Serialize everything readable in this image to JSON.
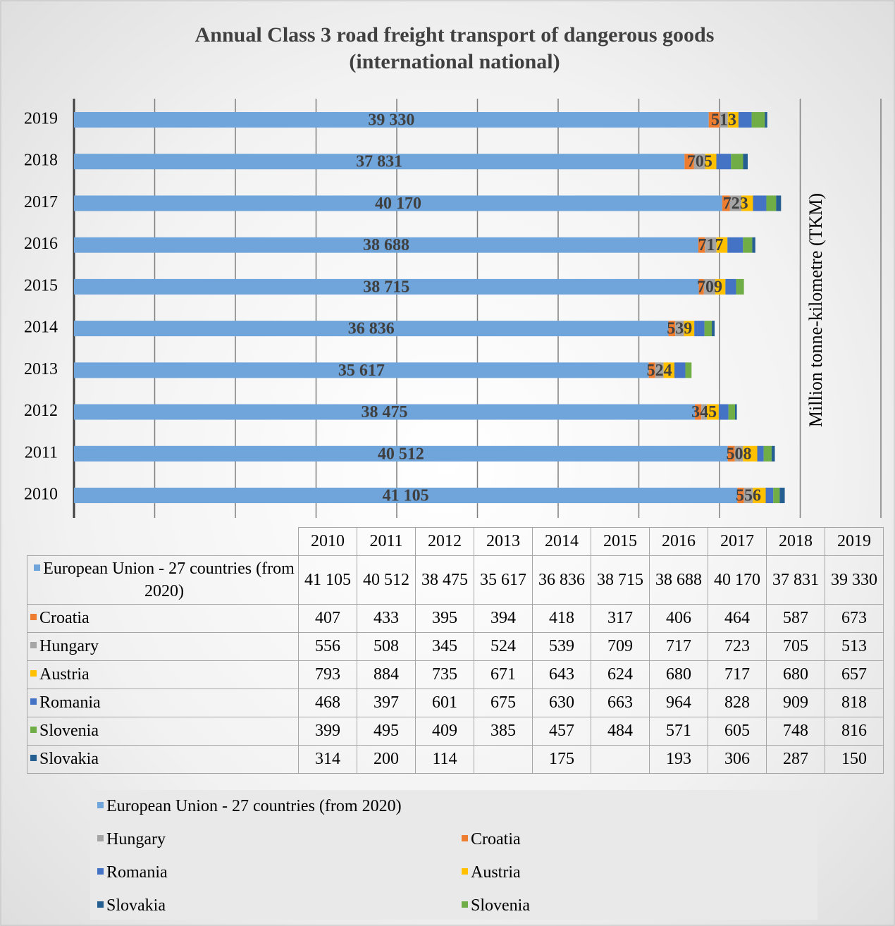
{
  "chart_data": {
    "type": "stacked_barh",
    "title": "Annual Class 3 road freight transport of dangerous goods",
    "subtitle": "(international national)",
    "axis_title": "Million tonne-kilometre (TKM)",
    "categories": [
      "2010",
      "2011",
      "2012",
      "2013",
      "2014",
      "2015",
      "2016",
      "2017",
      "2018",
      "2019"
    ],
    "series": [
      {
        "name": "European Union - 27 countries (from 2020)",
        "color": "#6fa5da",
        "data_labels": true,
        "values": [
          41105,
          40512,
          38475,
          35617,
          36836,
          38715,
          38688,
          40170,
          37831,
          39330
        ],
        "value_labels": [
          "41 105",
          "40 512",
          "38 475",
          "35 617",
          "36 836",
          "38 715",
          "38 688",
          "40 170",
          "37 831",
          "39 330"
        ]
      },
      {
        "name": "Croatia",
        "color": "#ed7d31",
        "values": [
          407,
          433,
          395,
          394,
          418,
          317,
          406,
          464,
          587,
          673
        ]
      },
      {
        "name": "Hungary",
        "color": "#a5a5a5",
        "data_labels": true,
        "values": [
          556,
          508,
          345,
          524,
          539,
          709,
          717,
          723,
          705,
          513
        ]
      },
      {
        "name": "Austria",
        "color": "#ffc000",
        "values": [
          793,
          884,
          735,
          671,
          643,
          624,
          680,
          717,
          680,
          657
        ]
      },
      {
        "name": "Romania",
        "color": "#4472c4",
        "values": [
          468,
          397,
          601,
          675,
          630,
          663,
          964,
          828,
          909,
          818
        ]
      },
      {
        "name": "Slovenia",
        "color": "#70ad47",
        "values": [
          399,
          495,
          409,
          385,
          457,
          484,
          571,
          605,
          748,
          816
        ]
      },
      {
        "name": "Slovakia",
        "color": "#255e91",
        "values": [
          314,
          200,
          114,
          null,
          175,
          null,
          193,
          306,
          287,
          150
        ]
      }
    ],
    "xlim": [
      0,
      50000
    ],
    "xticks": [
      0,
      5000,
      10000,
      15000,
      20000,
      25000,
      30000,
      35000,
      40000,
      45000,
      50000
    ],
    "grid": true
  }
}
